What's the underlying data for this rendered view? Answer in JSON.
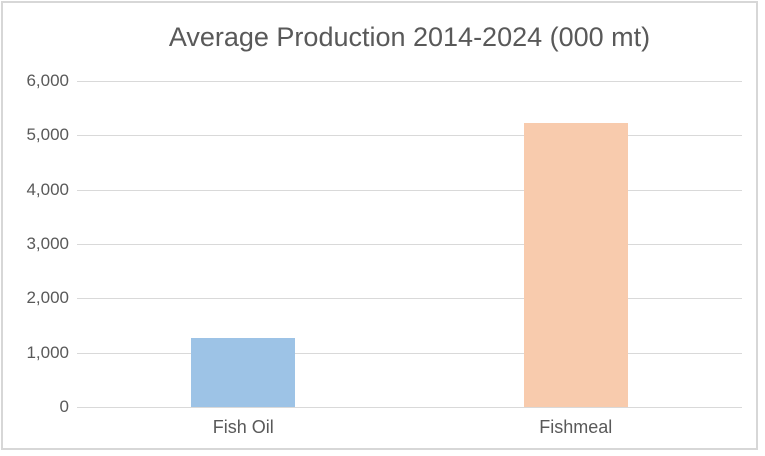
{
  "colors": {
    "text": "#595959",
    "gridline": "#d9d9d9",
    "frame_border": "#d7d7d7",
    "background": "#ffffff",
    "fish_oil_bar": "#9dc3e6",
    "fishmeal_bar": "#f8cbad"
  },
  "chart_data": {
    "type": "bar",
    "title": "Average Production 2014-2024 (000 mt)",
    "categories": [
      "Fish Oil",
      "Fishmeal"
    ],
    "values": [
      1270,
      5230
    ],
    "bar_colors": [
      "#9dc3e6",
      "#f8cbad"
    ],
    "xlabel": "",
    "ylabel": "",
    "ylim": [
      0,
      6000
    ],
    "ytick_step": 1000,
    "ytick_labels": [
      "0",
      "1,000",
      "2,000",
      "3,000",
      "4,000",
      "5,000",
      "6,000"
    ],
    "grid": "horizontal-only",
    "legend": "none"
  }
}
